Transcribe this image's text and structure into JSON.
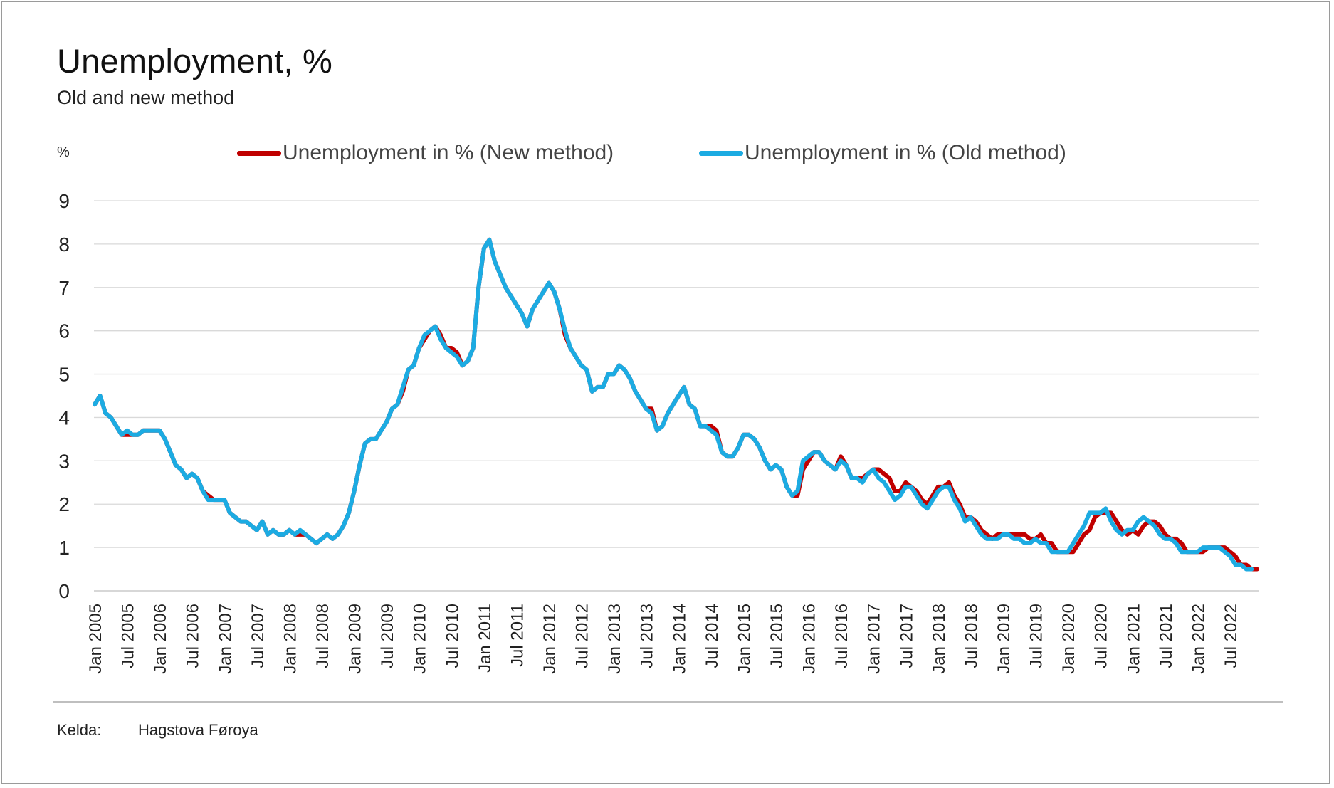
{
  "title": "Unemployment, %",
  "subtitle": "Old and new method",
  "unit_label": "%",
  "source": {
    "label": "Kelda:",
    "value": "Hagstova Føroya"
  },
  "colors": {
    "new": "#c00000",
    "old": "#1cabe2",
    "grid": "#d9d9d9"
  },
  "chart_data": {
    "type": "line",
    "title": "Unemployment, %",
    "subtitle": "Old and new method",
    "ylabel": "%",
    "ylim": [
      0,
      9
    ],
    "yticks": [
      0,
      1,
      2,
      3,
      4,
      5,
      6,
      7,
      8,
      9
    ],
    "grid": true,
    "legend_position": "top",
    "x_start": "Jan 2005",
    "x_frequency": "monthly",
    "x_tick_labels": [
      "Jan 2005",
      "Jul 2005",
      "Jan 2006",
      "Jul 2006",
      "Jan 2007",
      "Jul 2007",
      "Jan 2008",
      "Jul 2008",
      "Jan 2009",
      "Jul 2009",
      "Jan 2010",
      "Jul 2010",
      "Jan 2011",
      "Jul 2011",
      "Jan 2012",
      "Jul 2012",
      "Jan 2013",
      "Jul 2013",
      "Jan 2014",
      "Jul 2014",
      "Jan 2015",
      "Jul 2015",
      "Jan 2016",
      "Jul 2016",
      "Jan 2017",
      "Jul 2017",
      "Jan 2018",
      "Jul 2018",
      "Jan 2019",
      "Jul 2019",
      "Jan 2020",
      "Jul 2020",
      "Jan 2021",
      "Jul 2021",
      "Jan 2022",
      "Jul 2022"
    ],
    "series": [
      {
        "name": "Unemployment in % (New method)",
        "color": "#c00000",
        "values": [
          4.3,
          4.5,
          4.1,
          4.0,
          3.8,
          3.6,
          3.6,
          3.6,
          3.6,
          3.7,
          3.7,
          3.7,
          3.7,
          3.5,
          3.2,
          2.9,
          2.8,
          2.6,
          2.7,
          2.6,
          2.3,
          2.2,
          2.1,
          2.1,
          2.1,
          1.8,
          1.7,
          1.6,
          1.6,
          1.5,
          1.4,
          1.6,
          1.3,
          1.4,
          1.3,
          1.3,
          1.4,
          1.3,
          1.3,
          1.3,
          1.2,
          1.1,
          1.2,
          1.3,
          1.2,
          1.3,
          1.5,
          1.8,
          2.3,
          2.9,
          3.4,
          3.5,
          3.5,
          3.7,
          3.9,
          4.2,
          4.3,
          4.6,
          5.1,
          5.2,
          5.6,
          5.8,
          6.0,
          6.1,
          5.9,
          5.6,
          5.6,
          5.5,
          5.2,
          5.3,
          5.6,
          7.0,
          7.9,
          8.1,
          7.6,
          7.3,
          7.0,
          6.8,
          6.6,
          6.4,
          6.1,
          6.5,
          6.7,
          6.9,
          7.1,
          6.9,
          6.5,
          5.9,
          5.6,
          5.4,
          5.2,
          5.1,
          4.6,
          4.7,
          4.7,
          5.0,
          5.0,
          5.2,
          5.1,
          4.9,
          4.6,
          4.4,
          4.2,
          4.2,
          3.7,
          3.8,
          4.1,
          4.3,
          4.5,
          4.7,
          4.3,
          4.2,
          3.8,
          3.8,
          3.8,
          3.7,
          3.2,
          3.1,
          3.1,
          3.3,
          3.6,
          3.6,
          3.5,
          3.3,
          3.0,
          2.8,
          2.9,
          2.8,
          2.4,
          2.2,
          2.2,
          2.8,
          3.0,
          3.2,
          3.2,
          3.0,
          2.9,
          2.8,
          3.1,
          2.9,
          2.6,
          2.6,
          2.6,
          2.7,
          2.8,
          2.8,
          2.7,
          2.6,
          2.3,
          2.3,
          2.5,
          2.4,
          2.3,
          2.1,
          2.0,
          2.2,
          2.4,
          2.4,
          2.5,
          2.2,
          2.0,
          1.7,
          1.7,
          1.6,
          1.4,
          1.3,
          1.2,
          1.3,
          1.3,
          1.3,
          1.3,
          1.3,
          1.3,
          1.2,
          1.2,
          1.3,
          1.1,
          1.1,
          0.9,
          0.9,
          0.9,
          0.9,
          1.1,
          1.3,
          1.4,
          1.7,
          1.8,
          1.8,
          1.8,
          1.6,
          1.4,
          1.3,
          1.4,
          1.3,
          1.5,
          1.6,
          1.6,
          1.5,
          1.3,
          1.2,
          1.2,
          1.1,
          0.9,
          0.9,
          0.9,
          0.9,
          1.0,
          1.0,
          1.0,
          1.0,
          0.9,
          0.8,
          0.6,
          0.6,
          0.5,
          0.5
        ]
      },
      {
        "name": "Unemployment in % (Old method)",
        "color": "#1cabe2",
        "values": [
          4.3,
          4.5,
          4.1,
          4.0,
          3.8,
          3.6,
          3.7,
          3.6,
          3.6,
          3.7,
          3.7,
          3.7,
          3.7,
          3.5,
          3.2,
          2.9,
          2.8,
          2.6,
          2.7,
          2.6,
          2.3,
          2.1,
          2.1,
          2.1,
          2.1,
          1.8,
          1.7,
          1.6,
          1.6,
          1.5,
          1.4,
          1.6,
          1.3,
          1.4,
          1.3,
          1.3,
          1.4,
          1.3,
          1.4,
          1.3,
          1.2,
          1.1,
          1.2,
          1.3,
          1.2,
          1.3,
          1.5,
          1.8,
          2.3,
          2.9,
          3.4,
          3.5,
          3.5,
          3.7,
          3.9,
          4.2,
          4.3,
          4.7,
          5.1,
          5.2,
          5.6,
          5.9,
          6.0,
          6.1,
          5.8,
          5.6,
          5.5,
          5.4,
          5.2,
          5.3,
          5.6,
          7.0,
          7.9,
          8.1,
          7.6,
          7.3,
          7.0,
          6.8,
          6.6,
          6.4,
          6.1,
          6.5,
          6.7,
          6.9,
          7.1,
          6.9,
          6.5,
          6.0,
          5.6,
          5.4,
          5.2,
          5.1,
          4.6,
          4.7,
          4.7,
          5.0,
          5.0,
          5.2,
          5.1,
          4.9,
          4.6,
          4.4,
          4.2,
          4.1,
          3.7,
          3.8,
          4.1,
          4.3,
          4.5,
          4.7,
          4.3,
          4.2,
          3.8,
          3.8,
          3.7,
          3.6,
          3.2,
          3.1,
          3.1,
          3.3,
          3.6,
          3.6,
          3.5,
          3.3,
          3.0,
          2.8,
          2.9,
          2.8,
          2.4,
          2.2,
          2.3,
          3.0,
          3.1,
          3.2,
          3.2,
          3.0,
          2.9,
          2.8,
          3.0,
          2.9,
          2.6,
          2.6,
          2.5,
          2.7,
          2.8,
          2.6,
          2.5,
          2.3,
          2.1,
          2.2,
          2.4,
          2.4,
          2.2,
          2.0,
          1.9,
          2.1,
          2.3,
          2.4,
          2.4,
          2.1,
          1.9,
          1.6,
          1.7,
          1.5,
          1.3,
          1.2,
          1.2,
          1.2,
          1.3,
          1.3,
          1.2,
          1.2,
          1.1,
          1.1,
          1.2,
          1.1,
          1.1,
          0.9,
          0.9,
          0.9,
          0.9,
          1.1,
          1.3,
          1.5,
          1.8,
          1.8,
          1.8,
          1.9,
          1.6,
          1.4,
          1.3,
          1.4,
          1.4,
          1.6,
          1.7,
          1.6,
          1.5,
          1.3,
          1.2,
          1.2,
          1.1,
          0.9,
          0.9,
          0.9,
          0.9,
          1.0,
          1.0,
          1.0,
          1.0,
          0.9,
          0.8,
          0.6,
          0.6,
          0.5,
          0.5
        ]
      }
    ]
  }
}
